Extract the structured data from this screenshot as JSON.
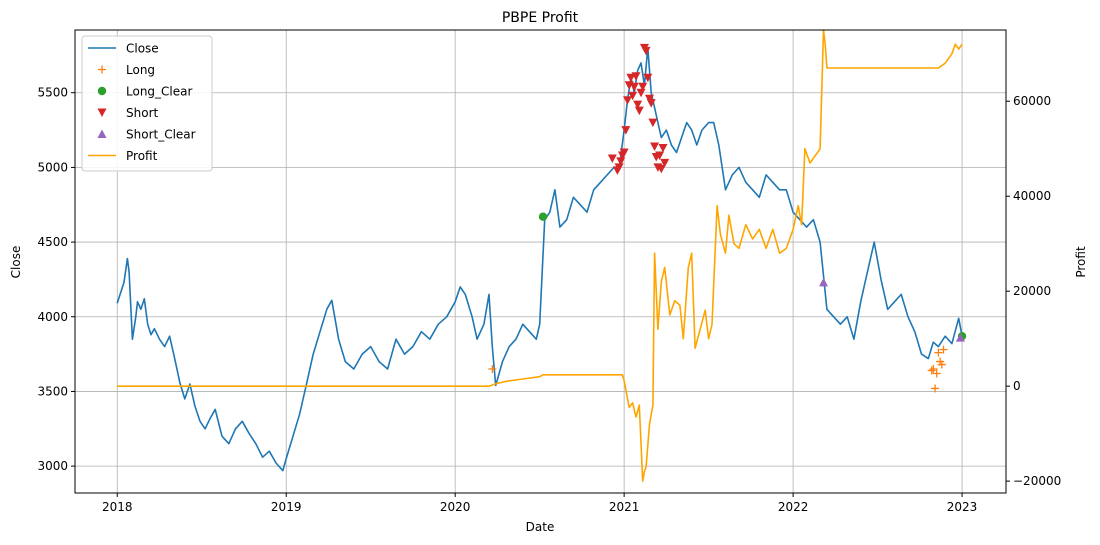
{
  "chart_data": {
    "type": "line",
    "title": "PBPE Profit",
    "xlabel": "Date",
    "ylabel": "Close",
    "y2label": "Profit",
    "grid": true,
    "legend_placement": "top-left",
    "xlim": [
      2017.75,
      2023.26
    ],
    "ylim": [
      2820,
      5920
    ],
    "y2lim": [
      -22500,
      75000
    ],
    "x_ticks": [
      2018,
      2019,
      2020,
      2021,
      2022,
      2023
    ],
    "y_ticks": [
      3000,
      3500,
      4000,
      4500,
      5000,
      5500
    ],
    "y2_ticks": [
      -20000,
      0,
      20000,
      40000,
      60000
    ],
    "series": [
      {
        "name": "Close",
        "axis": "left",
        "color": "#1f77b4",
        "x": [
          2018.0,
          2018.04,
          2018.06,
          2018.07,
          2018.09,
          2018.11,
          2018.12,
          2018.14,
          2018.16,
          2018.18,
          2018.2,
          2018.22,
          2018.25,
          2018.28,
          2018.31,
          2018.34,
          2018.37,
          2018.4,
          2018.43,
          2018.46,
          2018.49,
          2018.52,
          2018.55,
          2018.58,
          2018.62,
          2018.66,
          2018.7,
          2018.74,
          2018.78,
          2018.82,
          2018.86,
          2018.9,
          2018.94,
          2018.98,
          2019.0,
          2019.04,
          2019.08,
          2019.12,
          2019.16,
          2019.2,
          2019.24,
          2019.27,
          2019.31,
          2019.35,
          2019.4,
          2019.45,
          2019.5,
          2019.55,
          2019.6,
          2019.65,
          2019.7,
          2019.75,
          2019.8,
          2019.85,
          2019.9,
          2019.95,
          2020.0,
          2020.03,
          2020.06,
          2020.1,
          2020.13,
          2020.17,
          2020.2,
          2020.22,
          2020.24,
          2020.28,
          2020.32,
          2020.36,
          2020.4,
          2020.44,
          2020.48,
          2020.5,
          2020.53,
          2020.56,
          2020.59,
          2020.62,
          2020.66,
          2020.7,
          2020.74,
          2020.78,
          2020.82,
          2020.86,
          2020.9,
          2020.94,
          2020.97,
          2021.0,
          2021.02,
          2021.04,
          2021.06,
          2021.08,
          2021.1,
          2021.12,
          2021.14,
          2021.16,
          2021.18,
          2021.2,
          2021.22,
          2021.25,
          2021.28,
          2021.31,
          2021.34,
          2021.37,
          2021.4,
          2021.43,
          2021.46,
          2021.5,
          2021.53,
          2021.56,
          2021.6,
          2021.64,
          2021.68,
          2021.72,
          2021.76,
          2021.8,
          2021.84,
          2021.88,
          2021.92,
          2021.96,
          2022.0,
          2022.04,
          2022.08,
          2022.12,
          2022.16,
          2022.2,
          2022.24,
          2022.28,
          2022.32,
          2022.36,
          2022.4,
          2022.44,
          2022.48,
          2022.52,
          2022.56,
          2022.6,
          2022.64,
          2022.68,
          2022.72,
          2022.76,
          2022.8,
          2022.83,
          2022.86,
          2022.9,
          2022.94,
          2022.98,
          2023.0
        ],
        "y": [
          4090,
          4230,
          4390,
          4300,
          3850,
          4000,
          4100,
          4050,
          4120,
          3950,
          3880,
          3920,
          3850,
          3800,
          3870,
          3720,
          3560,
          3450,
          3550,
          3400,
          3300,
          3250,
          3320,
          3380,
          3200,
          3150,
          3250,
          3300,
          3220,
          3150,
          3060,
          3100,
          3020,
          2970,
          3050,
          3200,
          3350,
          3550,
          3750,
          3900,
          4050,
          4110,
          3850,
          3700,
          3650,
          3750,
          3800,
          3700,
          3650,
          3850,
          3750,
          3800,
          3900,
          3850,
          3950,
          4000,
          4100,
          4200,
          4150,
          4000,
          3850,
          3950,
          4150,
          3800,
          3540,
          3700,
          3800,
          3850,
          3950,
          3900,
          3850,
          3950,
          4650,
          4700,
          4850,
          4600,
          4650,
          4800,
          4750,
          4700,
          4850,
          4900,
          4950,
          5000,
          4990,
          5250,
          5450,
          5600,
          5500,
          5650,
          5700,
          5550,
          5800,
          5500,
          5400,
          5300,
          5200,
          5250,
          5150,
          5100,
          5200,
          5300,
          5250,
          5150,
          5250,
          5300,
          5300,
          5150,
          4850,
          4950,
          5000,
          4900,
          4850,
          4800,
          4950,
          4900,
          4850,
          4850,
          4700,
          4650,
          4600,
          4650,
          4500,
          4050,
          4000,
          3950,
          4000,
          3850,
          4100,
          4300,
          4500,
          4250,
          4050,
          4100,
          4150,
          4000,
          3900,
          3750,
          3720,
          3830,
          3800,
          3870,
          3820,
          3990,
          3870
        ],
        "markers_style": "line"
      },
      {
        "name": "Long",
        "axis": "left",
        "marker": "+",
        "color": "#ff7f0e",
        "x": [
          2020.22,
          2022.82,
          2022.83,
          2022.84,
          2022.85,
          2022.86,
          2022.87,
          2022.88,
          2022.89
        ],
        "y": [
          3650,
          3640,
          3650,
          3520,
          3620,
          3760,
          3700,
          3680,
          3780
        ]
      },
      {
        "name": "Long_Clear",
        "axis": "left",
        "marker": "o",
        "color": "#2ca02c",
        "x": [
          2020.52,
          2023.0
        ],
        "y": [
          4670,
          3870
        ]
      },
      {
        "name": "Short",
        "axis": "left",
        "marker": "v",
        "color": "#d62728",
        "x": [
          2020.93,
          2020.96,
          2020.97,
          2020.98,
          2020.99,
          2021.0,
          2021.01,
          2021.02,
          2021.03,
          2021.04,
          2021.05,
          2021.06,
          2021.07,
          2021.08,
          2021.09,
          2021.1,
          2021.11,
          2021.12,
          2021.13,
          2021.14,
          2021.15,
          2021.16,
          2021.17,
          2021.18,
          2021.19,
          2021.2,
          2021.21,
          2021.22,
          2021.23,
          2021.24
        ],
        "y": [
          5060,
          4980,
          5000,
          5040,
          5080,
          5100,
          5250,
          5450,
          5550,
          5600,
          5480,
          5540,
          5610,
          5420,
          5380,
          5500,
          5540,
          5800,
          5780,
          5600,
          5460,
          5430,
          5300,
          5140,
          5070,
          5000,
          5080,
          4990,
          5130,
          5030
        ]
      },
      {
        "name": "Short_Clear",
        "axis": "left",
        "marker": "^",
        "color": "#9467bd",
        "x": [
          2022.18,
          2022.99
        ],
        "y": [
          4230,
          3860
        ]
      },
      {
        "name": "Profit",
        "axis": "right",
        "color": "#ffa500",
        "x": [
          2018.0,
          2020.2,
          2020.24,
          2020.3,
          2020.4,
          2020.5,
          2020.52,
          2020.6,
          2020.7,
          2020.8,
          2020.9,
          2020.99,
          2021.0,
          2021.03,
          2021.05,
          2021.07,
          2021.09,
          2021.11,
          2021.12,
          2021.13,
          2021.15,
          2021.17,
          2021.18,
          2021.2,
          2021.22,
          2021.24,
          2021.27,
          2021.3,
          2021.33,
          2021.35,
          2021.38,
          2021.4,
          2021.42,
          2021.45,
          2021.48,
          2021.5,
          2021.52,
          2021.55,
          2021.57,
          2021.6,
          2021.62,
          2021.65,
          2021.68,
          2021.72,
          2021.76,
          2021.8,
          2021.84,
          2021.88,
          2021.92,
          2021.96,
          2022.0,
          2022.03,
          2022.05,
          2022.07,
          2022.1,
          2022.12,
          2022.14,
          2022.16,
          2022.18,
          2022.19,
          2022.2,
          2022.5,
          2022.82,
          2022.84,
          2022.86,
          2022.9,
          2022.94,
          2022.96,
          2022.98,
          2023.0
        ],
        "y": [
          0,
          0,
          500,
          1000,
          1500,
          2000,
          2400,
          2400,
          2400,
          2400,
          2400,
          2400,
          1200,
          -4500,
          -3500,
          -6500,
          -4000,
          -20000,
          -18000,
          -17000,
          -8000,
          -4000,
          28000,
          12000,
          22000,
          25000,
          15000,
          18000,
          17000,
          10000,
          25000,
          28000,
          8000,
          12000,
          16000,
          10000,
          13000,
          38000,
          32000,
          28000,
          36000,
          30000,
          29000,
          34000,
          31000,
          33000,
          29000,
          33000,
          28000,
          29000,
          33000,
          38000,
          34000,
          50000,
          47000,
          48000,
          49000,
          50000,
          75000,
          72000,
          67000,
          67000,
          67000,
          67000,
          67000,
          68000,
          70000,
          72000,
          71000,
          72000
        ],
        "markers_style": "line"
      }
    ]
  }
}
